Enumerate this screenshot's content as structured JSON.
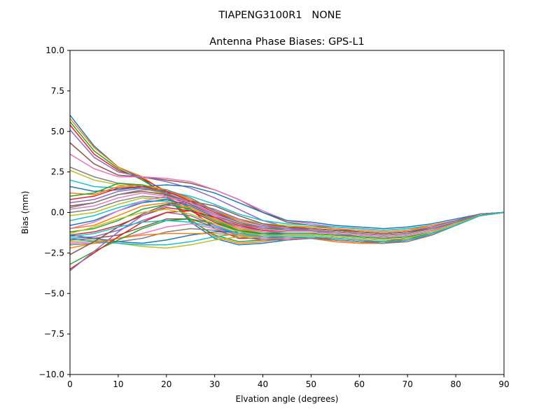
{
  "figure_title": "TIAPENG3100R1   NONE",
  "chart_data": {
    "type": "line",
    "title": "Antenna Phase Biases: GPS-L1",
    "xlabel": "Elvation angle (degrees)",
    "ylabel": "Bias (mm)",
    "xlim": [
      0,
      90
    ],
    "ylim": [
      -10,
      10
    ],
    "grid": false,
    "legend": "none",
    "x_ticks": [
      "0",
      "10",
      "20",
      "30",
      "40",
      "50",
      "60",
      "70",
      "80",
      "90"
    ],
    "y_ticks": [
      "−10.0",
      "−7.5",
      "−5.0",
      "−2.5",
      "0.0",
      "2.5",
      "5.0",
      "7.5",
      "10.0"
    ],
    "x": [
      0,
      5,
      10,
      15,
      20,
      25,
      30,
      35,
      40,
      45,
      50,
      55,
      60,
      65,
      70,
      75,
      80,
      85,
      90
    ],
    "colors": [
      "#1f77b4",
      "#ff7f0e",
      "#2ca02c",
      "#d62728",
      "#9467bd",
      "#8c564b",
      "#e377c2",
      "#7f7f7f",
      "#bcbd22",
      "#17becf"
    ],
    "series": [
      {
        "values": [
          6.0,
          4.1,
          2.8,
          2.1,
          1.0,
          -0.6,
          -1.6,
          -2.0,
          -1.9,
          -1.7,
          -1.6,
          -1.8,
          -1.9,
          -1.9,
          -1.7,
          -1.3,
          -0.8,
          -0.2,
          0.0
        ]
      },
      {
        "values": [
          5.8,
          4.0,
          2.8,
          2.2,
          1.2,
          -0.4,
          -1.5,
          -1.9,
          -1.8,
          -1.6,
          -1.6,
          -1.8,
          -1.9,
          -1.9,
          -1.7,
          -1.3,
          -0.8,
          -0.2,
          0.0
        ]
      },
      {
        "values": [
          5.6,
          3.8,
          2.7,
          2.0,
          1.1,
          -0.5,
          -1.4,
          -1.8,
          -1.7,
          -1.6,
          -1.5,
          -1.7,
          -1.8,
          -1.9,
          -1.7,
          -1.3,
          -0.8,
          -0.2,
          0.0
        ]
      },
      {
        "values": [
          5.4,
          3.6,
          2.6,
          2.1,
          1.3,
          0.2,
          -1.0,
          -1.6,
          -1.6,
          -1.5,
          -1.5,
          -1.7,
          -1.8,
          -1.8,
          -1.6,
          -1.2,
          -0.7,
          -0.2,
          0.0
        ]
      },
      {
        "values": [
          5.1,
          3.4,
          2.5,
          2.2,
          1.9,
          1.5,
          0.9,
          0.2,
          -0.5,
          -0.9,
          -1.1,
          -1.3,
          -1.5,
          -1.6,
          -1.5,
          -1.2,
          -0.7,
          -0.2,
          0.0
        ]
      },
      {
        "values": [
          4.3,
          3.0,
          2.3,
          2.2,
          2.0,
          1.8,
          1.4,
          0.8,
          0.0,
          -0.6,
          -0.8,
          -1.0,
          -1.2,
          -1.3,
          -1.2,
          -1.0,
          -0.6,
          -0.1,
          0.0
        ]
      },
      {
        "values": [
          3.6,
          2.7,
          2.2,
          2.2,
          2.1,
          1.9,
          1.4,
          0.8,
          0.1,
          -0.5,
          -0.7,
          -0.9,
          -1.0,
          -1.1,
          -1.0,
          -0.8,
          -0.5,
          -0.1,
          0.0
        ]
      },
      {
        "values": [
          2.8,
          2.2,
          1.8,
          1.6,
          1.3,
          0.8,
          0.1,
          -0.5,
          -0.8,
          -0.9,
          -1.0,
          -1.1,
          -1.2,
          -1.3,
          -1.2,
          -0.9,
          -0.5,
          -0.1,
          0.0
        ]
      },
      {
        "values": [
          2.6,
          2.0,
          1.7,
          1.5,
          1.1,
          0.7,
          0.1,
          -0.4,
          -0.7,
          -0.8,
          -0.9,
          -1.0,
          -1.1,
          -1.2,
          -1.1,
          -0.9,
          -0.5,
          -0.1,
          0.0
        ]
      },
      {
        "values": [
          2.0,
          1.6,
          1.5,
          1.5,
          1.3,
          1.0,
          0.5,
          -0.1,
          -0.5,
          -0.7,
          -0.8,
          -0.9,
          -1.0,
          -1.1,
          -1.0,
          -0.8,
          -0.5,
          -0.1,
          0.0
        ]
      },
      {
        "values": [
          1.6,
          1.3,
          1.4,
          1.6,
          1.7,
          1.6,
          1.2,
          0.6,
          0.0,
          -0.5,
          -0.6,
          -0.8,
          -0.9,
          -1.0,
          -0.9,
          -0.7,
          -0.4,
          -0.1,
          0.0
        ]
      },
      {
        "values": [
          1.2,
          1.1,
          1.6,
          1.7,
          1.4,
          0.8,
          0.1,
          -0.5,
          -0.8,
          -0.9,
          -0.9,
          -1.0,
          -1.1,
          -1.2,
          -1.1,
          -0.8,
          -0.5,
          -0.1,
          0.0
        ]
      },
      {
        "values": [
          1.0,
          1.2,
          1.8,
          1.7,
          1.2,
          0.5,
          -0.2,
          -0.7,
          -1.0,
          -1.0,
          -1.0,
          -1.1,
          -1.2,
          -1.3,
          -1.2,
          -0.9,
          -0.5,
          -0.1,
          0.0
        ]
      },
      {
        "values": [
          0.8,
          1.0,
          1.5,
          1.6,
          1.3,
          0.7,
          0.0,
          -0.6,
          -0.9,
          -1.0,
          -1.0,
          -1.1,
          -1.2,
          -1.3,
          -1.2,
          -0.9,
          -0.5,
          -0.1,
          0.0
        ]
      },
      {
        "values": [
          0.6,
          0.8,
          1.3,
          1.5,
          1.2,
          0.6,
          -0.1,
          -0.6,
          -0.9,
          -1.0,
          -1.0,
          -1.1,
          -1.2,
          -1.3,
          -1.2,
          -0.9,
          -0.5,
          -0.1,
          0.0
        ]
      },
      {
        "values": [
          0.4,
          0.6,
          1.1,
          1.3,
          1.1,
          0.5,
          -0.2,
          -0.7,
          -1.0,
          -1.1,
          -1.1,
          -1.2,
          -1.3,
          -1.4,
          -1.3,
          -1.0,
          -0.6,
          -0.1,
          0.0
        ]
      },
      {
        "values": [
          0.2,
          0.4,
          0.9,
          1.2,
          1.0,
          0.4,
          -0.3,
          -0.8,
          -1.0,
          -1.1,
          -1.1,
          -1.2,
          -1.3,
          -1.4,
          -1.3,
          -1.0,
          -0.6,
          -0.1,
          0.0
        ]
      },
      {
        "values": [
          0.0,
          0.2,
          0.7,
          1.0,
          0.9,
          0.3,
          -0.4,
          -0.9,
          -1.1,
          -1.2,
          -1.2,
          -1.3,
          -1.4,
          -1.5,
          -1.4,
          -1.1,
          -0.6,
          -0.2,
          0.0
        ]
      },
      {
        "values": [
          -0.2,
          0.0,
          0.5,
          0.9,
          0.8,
          0.2,
          -0.5,
          -1.0,
          -1.2,
          -1.2,
          -1.2,
          -1.3,
          -1.4,
          -1.5,
          -1.4,
          -1.1,
          -0.7,
          -0.2,
          0.0
        ]
      },
      {
        "values": [
          -0.5,
          -0.2,
          0.3,
          0.7,
          0.7,
          0.1,
          -0.6,
          -1.1,
          -1.3,
          -1.3,
          -1.3,
          -1.4,
          -1.5,
          -1.6,
          -1.5,
          -1.2,
          -0.7,
          -0.2,
          0.0
        ]
      },
      {
        "values": [
          -0.8,
          -0.5,
          0.1,
          0.6,
          0.8,
          0.4,
          -0.3,
          -0.9,
          -1.2,
          -1.3,
          -1.3,
          -1.4,
          -1.5,
          -1.6,
          -1.5,
          -1.2,
          -0.7,
          -0.2,
          0.0
        ]
      },
      {
        "values": [
          -1.0,
          -0.8,
          -0.2,
          0.4,
          0.6,
          0.3,
          -0.4,
          -1.0,
          -1.3,
          -1.4,
          -1.4,
          -1.5,
          -1.6,
          -1.7,
          -1.6,
          -1.2,
          -0.7,
          -0.2,
          0.0
        ]
      },
      {
        "values": [
          -1.2,
          -1.0,
          -0.5,
          0.2,
          0.5,
          0.2,
          -0.5,
          -1.1,
          -1.4,
          -1.4,
          -1.4,
          -1.5,
          -1.6,
          -1.7,
          -1.6,
          -1.3,
          -0.8,
          -0.2,
          0.0
        ]
      },
      {
        "values": [
          -1.4,
          -1.2,
          -0.8,
          -0.2,
          0.3,
          0.1,
          -0.6,
          -1.2,
          -1.5,
          -1.5,
          -1.5,
          -1.6,
          -1.7,
          -1.8,
          -1.7,
          -1.3,
          -0.8,
          -0.2,
          0.0
        ]
      },
      {
        "values": [
          -1.6,
          -1.5,
          -1.1,
          -0.5,
          0.0,
          -0.2,
          -0.8,
          -1.3,
          -1.5,
          -1.5,
          -1.5,
          -1.6,
          -1.7,
          -1.8,
          -1.7,
          -1.3,
          -0.8,
          -0.2,
          0.0
        ]
      },
      {
        "values": [
          -1.7,
          -1.6,
          -1.4,
          -0.9,
          -0.4,
          -0.4,
          -0.9,
          -1.4,
          -1.6,
          -1.6,
          -1.6,
          -1.7,
          -1.8,
          -1.9,
          -1.7,
          -1.4,
          -0.8,
          -0.2,
          0.0
        ]
      },
      {
        "values": [
          -1.9,
          -1.8,
          -1.6,
          -1.3,
          -0.9,
          -0.7,
          -1.0,
          -1.4,
          -1.6,
          -1.6,
          -1.6,
          -1.7,
          -1.8,
          -1.9,
          -1.8,
          -1.4,
          -0.8,
          -0.2,
          0.0
        ]
      },
      {
        "values": [
          -2.0,
          -1.9,
          -1.8,
          -1.6,
          -1.2,
          -1.0,
          -1.1,
          -1.5,
          -1.7,
          -1.7,
          -1.6,
          -1.7,
          -1.8,
          -1.9,
          -1.8,
          -1.4,
          -0.8,
          -0.2,
          0.0
        ]
      },
      {
        "values": [
          -1.8,
          -1.7,
          -1.9,
          -2.1,
          -2.2,
          -2.0,
          -1.7,
          -1.5,
          -1.5,
          -1.5,
          -1.5,
          -1.6,
          -1.7,
          -1.8,
          -1.7,
          -1.3,
          -0.8,
          -0.2,
          0.0
        ]
      },
      {
        "values": [
          -1.6,
          -1.8,
          -1.9,
          -2.0,
          -2.0,
          -1.8,
          -1.5,
          -1.3,
          -1.4,
          -1.5,
          -1.5,
          -1.6,
          -1.7,
          -1.8,
          -1.7,
          -1.3,
          -0.8,
          -0.2,
          0.0
        ]
      },
      {
        "values": [
          -1.4,
          -1.6,
          -1.8,
          -1.9,
          -1.7,
          -1.4,
          -1.2,
          -1.2,
          -1.3,
          -1.4,
          -1.4,
          -1.5,
          -1.6,
          -1.7,
          -1.6,
          -1.3,
          -0.8,
          -0.2,
          0.0
        ]
      },
      {
        "values": [
          -2.2,
          -1.9,
          -1.6,
          -1.4,
          -1.3,
          -1.3,
          -1.3,
          -1.4,
          -1.5,
          -1.5,
          -1.5,
          -1.6,
          -1.7,
          -1.8,
          -1.7,
          -1.3,
          -0.8,
          -0.2,
          0.0
        ]
      },
      {
        "values": [
          -3.2,
          -2.4,
          -1.7,
          -1.0,
          -0.5,
          -0.4,
          -0.7,
          -1.1,
          -1.3,
          -1.3,
          -1.3,
          -1.4,
          -1.5,
          -1.6,
          -1.5,
          -1.2,
          -0.7,
          -0.2,
          0.0
        ]
      },
      {
        "values": [
          -3.5,
          -2.5,
          -1.5,
          -0.6,
          0.0,
          0.1,
          -0.3,
          -0.8,
          -1.1,
          -1.2,
          -1.2,
          -1.3,
          -1.4,
          -1.5,
          -1.4,
          -1.1,
          -0.7,
          -0.2,
          0.0
        ]
      },
      {
        "values": [
          -3.6,
          -2.4,
          -1.2,
          -0.2,
          0.4,
          0.6,
          0.2,
          -0.4,
          -0.8,
          -1.0,
          -1.1,
          -1.2,
          -1.3,
          -1.4,
          -1.3,
          -1.0,
          -0.6,
          -0.1,
          0.0
        ]
      },
      {
        "values": [
          -2.6,
          -1.8,
          -0.9,
          -0.1,
          0.5,
          0.7,
          0.4,
          -0.2,
          -0.7,
          -0.9,
          -1.0,
          -1.1,
          -1.2,
          -1.3,
          -1.2,
          -1.0,
          -0.6,
          -0.1,
          0.0
        ]
      },
      {
        "values": [
          -1.0,
          -0.6,
          0.1,
          0.7,
          1.0,
          0.6,
          -0.2,
          -0.9,
          -1.2,
          -1.2,
          -1.2,
          -1.3,
          -1.4,
          -1.5,
          -1.4,
          -1.1,
          -0.7,
          -0.2,
          0.0
        ]
      },
      {
        "values": [
          0.3,
          0.6,
          1.1,
          1.4,
          1.4,
          0.9,
          0.1,
          -0.6,
          -1.0,
          -1.1,
          -1.1,
          -1.2,
          -1.3,
          -1.4,
          -1.3,
          -1.0,
          -0.6,
          -0.1,
          0.0
        ]
      },
      {
        "values": [
          -1.3,
          -0.9,
          -0.4,
          0.0,
          0.2,
          -0.1,
          -0.7,
          -1.2,
          -1.4,
          -1.4,
          -1.4,
          -1.5,
          -1.6,
          -1.7,
          -1.6,
          -1.2,
          -0.7,
          -0.2,
          0.0
        ]
      },
      {
        "values": [
          -1.5,
          -1.3,
          -0.9,
          -0.6,
          -0.5,
          -0.6,
          -0.9,
          -1.3,
          -1.5,
          -1.5,
          -1.5,
          -1.6,
          -1.7,
          -1.8,
          -1.7,
          -1.3,
          -0.8,
          -0.2,
          0.0
        ]
      }
    ]
  }
}
